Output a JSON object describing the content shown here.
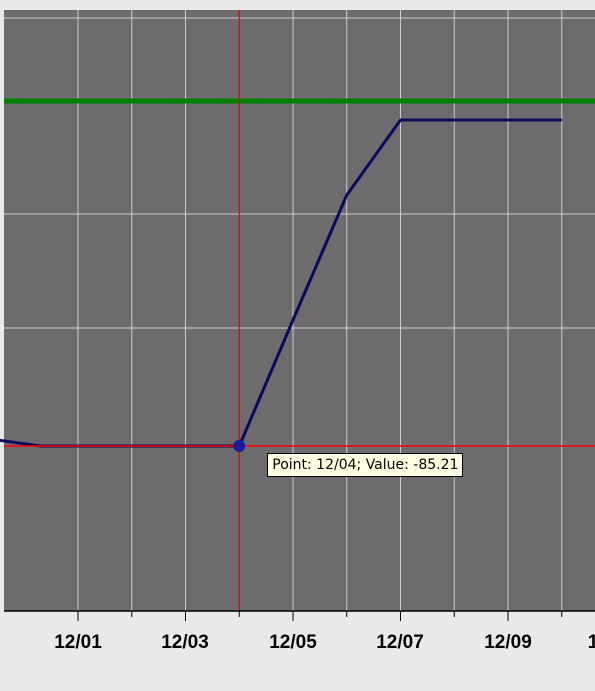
{
  "chart_data": {
    "type": "line",
    "x_ticks": [
      "12/01",
      "12/03",
      "12/05",
      "12/07",
      "12/09",
      "1"
    ],
    "series": [
      {
        "color": "#0a0a5c",
        "points": [
          {
            "x": "11/29.5",
            "y": -84.0
          },
          {
            "x": "11/30.3",
            "y": -85.21
          },
          {
            "x": "12/01",
            "y": -85.21
          },
          {
            "x": "12/02",
            "y": -85.21
          },
          {
            "x": "12/03",
            "y": -85.21
          },
          {
            "x": "12/04",
            "y": -85.21
          },
          {
            "x": "12/05",
            "y": -60.0
          },
          {
            "x": "12/06",
            "y": -35.0
          },
          {
            "x": "12/07",
            "y": -20.0
          },
          {
            "x": "12/08",
            "y": -20.0
          },
          {
            "x": "12/09",
            "y": -20.0
          },
          {
            "x": "12/10",
            "y": -20.0
          }
        ]
      }
    ],
    "threshold_line": {
      "color": "#008000",
      "y": 10.0
    },
    "crosshair": {
      "color": "#ff0000",
      "x": "12/04",
      "y": -85.21
    },
    "tooltip_text": "Point: 12/04; Value: -85.21",
    "grid": true,
    "colors": {
      "plot_background": "#6d6b6d",
      "grid": "#cfcfcf",
      "axis_background": "#e9e9e9",
      "tick_label": "#000000"
    }
  }
}
